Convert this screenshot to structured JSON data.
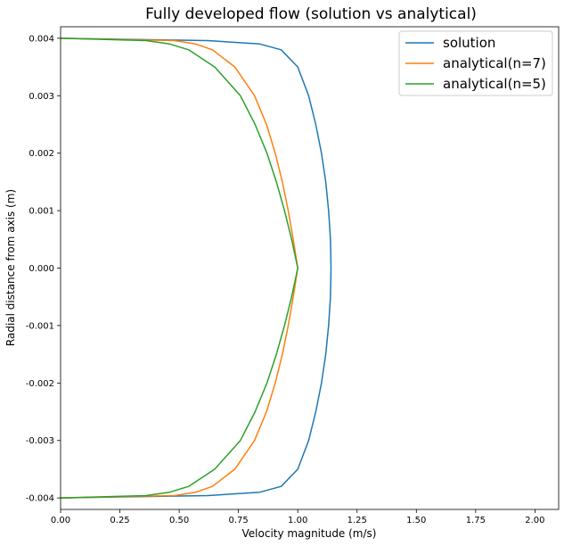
{
  "chart_data": {
    "type": "line",
    "title": "Fully developed flow (solution vs analytical)",
    "xlabel": "Velocity magnitude (m/s)",
    "ylabel": "Radial distance from axis (m)",
    "xlim": [
      0.0,
      2.1
    ],
    "ylim": [
      -0.0042,
      0.0042
    ],
    "xticks": [
      0.0,
      0.25,
      0.5,
      0.75,
      1.0,
      1.25,
      1.5,
      1.75,
      2.0
    ],
    "xtick_labels": [
      "0.00",
      "0.25",
      "0.50",
      "0.75",
      "1.00",
      "1.25",
      "1.50",
      "1.75",
      "2.00"
    ],
    "yticks": [
      -0.004,
      -0.003,
      -0.002,
      -0.001,
      0.0,
      0.001,
      0.002,
      0.003,
      0.004
    ],
    "ytick_labels": [
      "-0.004",
      "-0.003",
      "-0.002",
      "-0.001",
      "0.000",
      "0.001",
      "0.002",
      "0.003",
      "0.004"
    ],
    "grid": false,
    "legend_position": "top-right",
    "y": [
      -0.004,
      -0.00396,
      -0.0039,
      -0.0038,
      -0.0035,
      -0.003,
      -0.0025,
      -0.002,
      -0.0015,
      -0.001,
      -0.0005,
      0.0,
      0.0005,
      0.001,
      0.0015,
      0.002,
      0.0025,
      0.003,
      0.0035,
      0.0038,
      0.0039,
      0.00396,
      0.004
    ],
    "series": [
      {
        "name": "solution",
        "color": "#1f77b4",
        "values": [
          0.0,
          0.62,
          0.84,
          0.93,
          1.0,
          1.046,
          1.076,
          1.1,
          1.118,
          1.13,
          1.138,
          1.14,
          1.138,
          1.13,
          1.118,
          1.1,
          1.076,
          1.046,
          1.0,
          0.93,
          0.84,
          0.62,
          0.0
        ]
      },
      {
        "name": "analytical(n=7)",
        "color": "#ff7f0e",
        "values": [
          0.0,
          0.48,
          0.57,
          0.64,
          0.735,
          0.818,
          0.868,
          0.905,
          0.935,
          0.96,
          0.981,
          1.0,
          0.981,
          0.96,
          0.935,
          0.905,
          0.868,
          0.818,
          0.735,
          0.64,
          0.57,
          0.48,
          0.0
        ]
      },
      {
        "name": "analytical(n=5)",
        "color": "#2ca02c",
        "values": [
          0.0,
          0.36,
          0.46,
          0.54,
          0.65,
          0.758,
          0.82,
          0.87,
          0.91,
          0.944,
          0.974,
          1.0,
          0.974,
          0.944,
          0.91,
          0.87,
          0.82,
          0.758,
          0.65,
          0.54,
          0.46,
          0.36,
          0.0
        ]
      }
    ]
  }
}
